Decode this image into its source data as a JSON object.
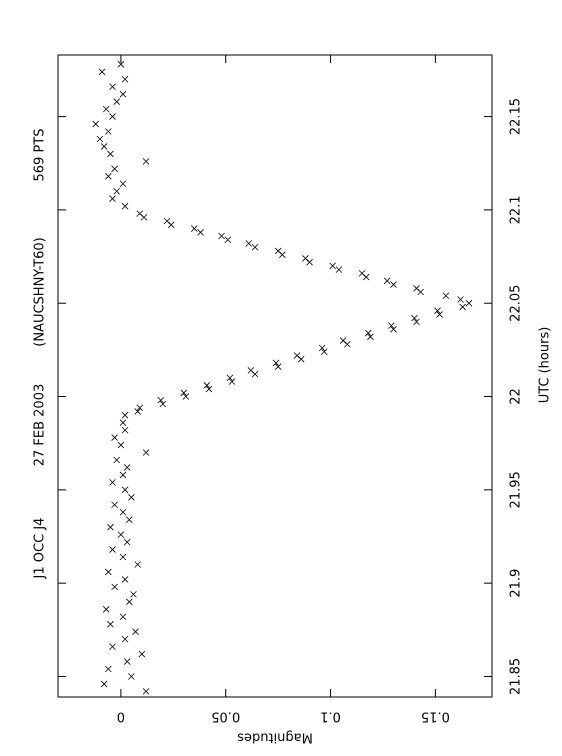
{
  "chart_data": {
    "type": "scatter",
    "title": [
      "J1 OCC J4",
      "27 FEB 2003",
      "(NAUCSHNY-T60)",
      "569 PTS"
    ],
    "x_label": "UTC (hours)",
    "y_label": "Magnitudes",
    "color": "#000000",
    "xlim": [
      21.839,
      22.183
    ],
    "ylim": [
      -0.03,
      0.177
    ],
    "xticks": [
      21.85,
      21.9,
      21.95,
      22,
      22.05,
      22.1,
      22.15
    ],
    "yticks": [
      0,
      0.05,
      0.1,
      0.15
    ],
    "x": [
      21.842,
      21.846,
      21.85,
      21.854,
      21.858,
      21.862,
      21.866,
      21.87,
      21.874,
      21.878,
      21.882,
      21.886,
      21.89,
      21.894,
      21.898,
      21.902,
      21.906,
      21.91,
      21.914,
      21.918,
      21.922,
      21.926,
      21.93,
      21.934,
      21.938,
      21.942,
      21.946,
      21.95,
      21.954,
      21.958,
      21.962,
      21.966,
      21.97,
      21.974,
      21.978,
      21.982,
      21.986,
      21.99,
      21.992,
      21.994,
      21.996,
      21.998,
      22.0,
      22.002,
      22.004,
      22.006,
      22.008,
      22.01,
      22.012,
      22.014,
      22.016,
      22.018,
      22.02,
      22.022,
      22.024,
      22.026,
      22.028,
      22.03,
      22.032,
      22.034,
      22.036,
      22.038,
      22.04,
      22.042,
      22.044,
      22.046,
      22.048,
      22.05,
      22.052,
      22.054,
      22.056,
      22.058,
      22.06,
      22.062,
      22.064,
      22.066,
      22.068,
      22.07,
      22.072,
      22.074,
      22.076,
      22.078,
      22.08,
      22.082,
      22.084,
      22.086,
      22.088,
      22.09,
      22.092,
      22.094,
      22.096,
      22.098,
      22.102,
      22.106,
      22.11,
      22.114,
      22.118,
      22.122,
      22.126,
      22.13,
      22.134,
      22.138,
      22.142,
      22.146,
      22.15,
      22.154,
      22.158,
      22.162,
      22.166,
      22.17,
      22.174,
      22.178
    ],
    "y": [
      0.012,
      -0.008,
      0.005,
      -0.006,
      0.003,
      0.01,
      -0.004,
      0.002,
      0.007,
      -0.005,
      0.001,
      -0.007,
      0.004,
      0.006,
      -0.003,
      0.002,
      -0.006,
      0.008,
      0.001,
      -0.004,
      0.003,
      0.0,
      -0.005,
      0.004,
      0.001,
      -0.003,
      0.005,
      0.002,
      -0.004,
      0.001,
      0.003,
      -0.002,
      0.012,
      0.0,
      -0.003,
      0.002,
      0.001,
      0.002,
      0.008,
      0.009,
      0.02,
      0.019,
      0.031,
      0.03,
      0.042,
      0.041,
      0.053,
      0.052,
      0.064,
      0.062,
      0.075,
      0.074,
      0.086,
      0.084,
      0.097,
      0.096,
      0.108,
      0.106,
      0.119,
      0.118,
      0.13,
      0.129,
      0.141,
      0.14,
      0.152,
      0.151,
      0.163,
      0.166,
      0.162,
      0.155,
      0.143,
      0.141,
      0.13,
      0.127,
      0.117,
      0.115,
      0.104,
      0.101,
      0.09,
      0.088,
      0.077,
      0.075,
      0.064,
      0.061,
      0.051,
      0.048,
      0.038,
      0.035,
      0.024,
      0.022,
      0.011,
      0.009,
      0.002,
      -0.004,
      -0.002,
      0.001,
      -0.006,
      -0.003,
      0.012,
      -0.005,
      -0.008,
      -0.01,
      -0.006,
      -0.012,
      -0.004,
      -0.007,
      -0.002,
      0.001,
      -0.004,
      0.002,
      -0.009,
      0.0
    ]
  }
}
